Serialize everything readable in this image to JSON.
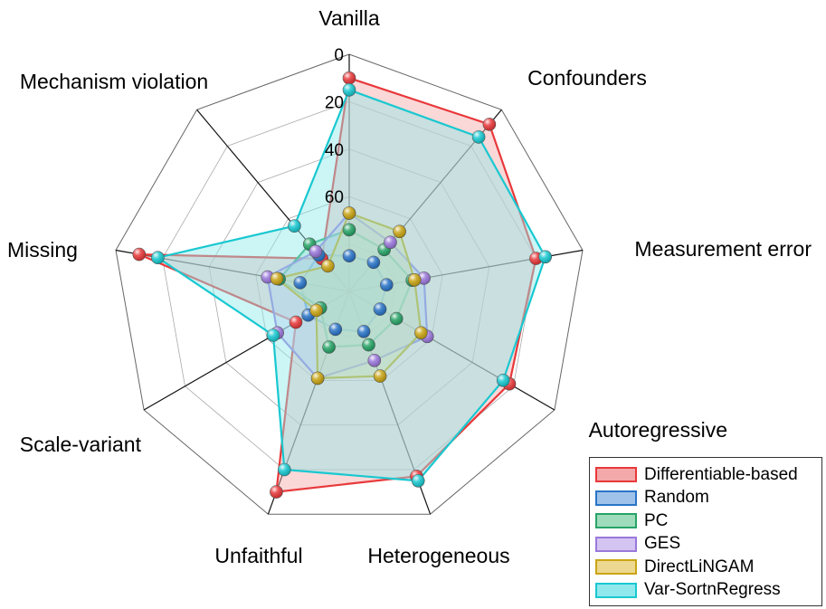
{
  "chart_data": {
    "type": "radar",
    "axes": [
      "Vanilla",
      "Confounders",
      "Measurement error",
      "Autoregressive",
      "Heterogeneous",
      "Unfaithful",
      "Scale-variant",
      "Missing",
      "Mechanism violation"
    ],
    "radial_ticks": [
      "0",
      "20",
      "40",
      "60"
    ],
    "radial_range": [
      100,
      0
    ],
    "grid": true,
    "legend_position": "bottom-right",
    "series": [
      {
        "name": "Differentiable-based",
        "color": "#e8393b",
        "fill": "#f3a9a9",
        "values": [
          10,
          8,
          20,
          22,
          17,
          10,
          74,
          10,
          82
        ]
      },
      {
        "name": "Random",
        "color": "#2a74c7",
        "fill": "#9fc2ea",
        "values": [
          85,
          84,
          84,
          85,
          82,
          83,
          80,
          79,
          80
        ]
      },
      {
        "name": "PC",
        "color": "#27a467",
        "fill": "#9fdcbc",
        "values": [
          74,
          77,
          73,
          77,
          76,
          75,
          86,
          70,
          74
        ]
      },
      {
        "name": "GES",
        "color": "#9a78db",
        "fill": "#d3c4f2",
        "values": [
          67,
          73,
          68,
          62,
          69,
          61,
          65,
          65,
          78
        ]
      },
      {
        "name": "DirectLiNGAM",
        "color": "#c9a515",
        "fill": "#ecd88e",
        "values": [
          67,
          67,
          72,
          65,
          62,
          61,
          84,
          69,
          86
        ]
      },
      {
        "name": "Var-SortnRegress",
        "color": "#19c8d0",
        "fill": "#8fe8ec",
        "values": [
          15,
          15,
          16,
          25,
          15,
          20,
          63,
          18,
          64
        ]
      }
    ]
  }
}
